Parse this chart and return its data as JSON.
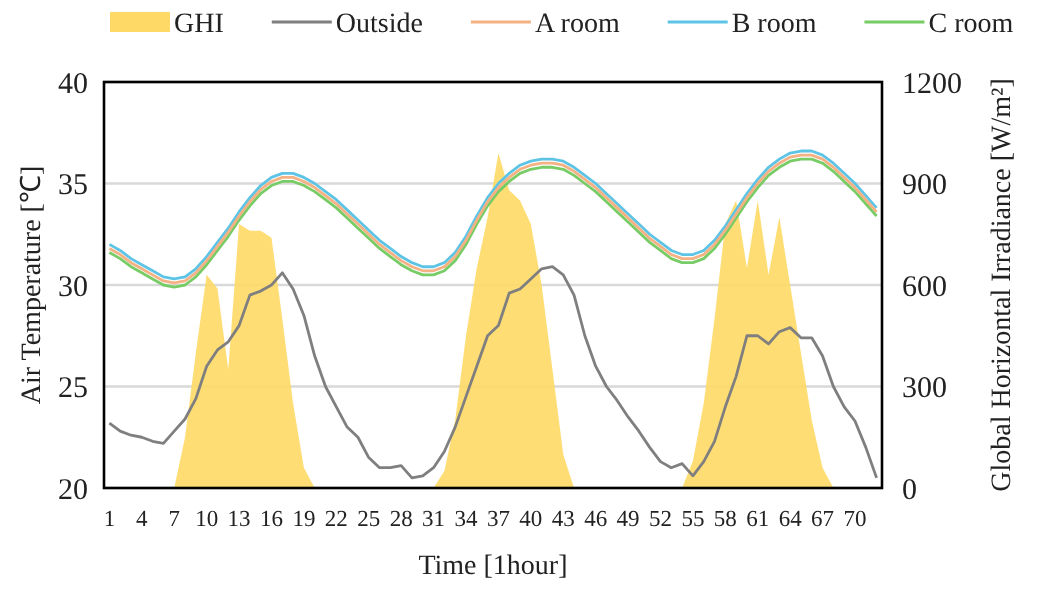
{
  "chart_data": {
    "type": "line",
    "xlabel": "Time [1hour]",
    "ylabel": "Air Temperature [℃]",
    "y2label": "Global Horizontal Irradiance [W/m²]",
    "categories": [
      "1",
      null,
      null,
      "4",
      null,
      null,
      "7",
      null,
      null,
      "10",
      null,
      null,
      "13",
      null,
      null,
      "16",
      null,
      null,
      "19",
      null,
      null,
      "22",
      null,
      null,
      "25",
      null,
      null,
      "28",
      null,
      null,
      "31",
      null,
      null,
      "34",
      null,
      null,
      "37",
      null,
      null,
      "40",
      null,
      null,
      "43",
      null,
      null,
      "46",
      null,
      null,
      "49",
      null,
      null,
      "52",
      null,
      null,
      "55",
      null,
      null,
      "58",
      null,
      null,
      "61",
      null,
      null,
      "64",
      null,
      null,
      "67",
      null,
      null,
      "70",
      null,
      null
    ],
    "series": [
      {
        "name": "GHI",
        "type": "area",
        "axis": "y2",
        "color": "#ffd966",
        "values": [
          0,
          0,
          0,
          0,
          0,
          0,
          0,
          150,
          400,
          630,
          590,
          350,
          780,
          760,
          760,
          740,
          500,
          250,
          60,
          0,
          0,
          0,
          0,
          0,
          0,
          0,
          0,
          0,
          0,
          0,
          0,
          50,
          200,
          450,
          650,
          800,
          990,
          880,
          850,
          780,
          600,
          350,
          100,
          0,
          0,
          0,
          0,
          0,
          0,
          0,
          0,
          0,
          0,
          0,
          80,
          250,
          500,
          780,
          850,
          650,
          850,
          630,
          800,
          600,
          400,
          200,
          60,
          0,
          0,
          0,
          0,
          0
        ]
      },
      {
        "name": "Outside",
        "color": "#7f7f7f",
        "values": [
          23.2,
          22.8,
          22.6,
          22.5,
          22.3,
          22.2,
          22.8,
          23.4,
          24.4,
          26,
          26.8,
          27.2,
          28,
          29.5,
          29.7,
          30,
          30.6,
          29.8,
          28.5,
          26.5,
          25,
          24,
          23,
          22.5,
          21.5,
          21,
          21,
          21.1,
          20.5,
          20.6,
          21,
          21.8,
          23,
          24.5,
          26,
          27.5,
          28,
          29.6,
          29.8,
          30.3,
          30.8,
          30.9,
          30.5,
          29.5,
          27.5,
          26,
          25,
          24.3,
          23.5,
          22.8,
          22,
          21.3,
          21,
          21.2,
          20.6,
          21.3,
          22.3,
          24,
          25.5,
          27.5,
          27.5,
          27.1,
          27.7,
          27.9,
          27.4,
          27.4,
          26.5,
          25,
          24,
          23.3,
          22,
          20.5
        ]
      },
      {
        "name": "A room",
        "color": "#f4b183",
        "values": [
          31.8,
          31.5,
          31.1,
          30.8,
          30.5,
          30.2,
          30.1,
          30.2,
          30.6,
          31.2,
          31.9,
          32.6,
          33.4,
          34.1,
          34.7,
          35.1,
          35.3,
          35.3,
          35.1,
          34.8,
          34.4,
          34,
          33.5,
          33,
          32.5,
          32,
          31.6,
          31.2,
          30.9,
          30.7,
          30.7,
          30.9,
          31.4,
          32.2,
          33.2,
          34.1,
          34.8,
          35.3,
          35.7,
          35.9,
          36,
          36,
          35.9,
          35.6,
          35.2,
          34.8,
          34.3,
          33.8,
          33.3,
          32.8,
          32.3,
          31.9,
          31.5,
          31.3,
          31.3,
          31.5,
          32,
          32.7,
          33.5,
          34.3,
          35,
          35.6,
          36,
          36.3,
          36.4,
          36.4,
          36.2,
          35.8,
          35.3,
          34.8,
          34.2,
          33.6
        ]
      },
      {
        "name": "B room",
        "color": "#5ec4e6",
        "values": [
          32,
          31.7,
          31.3,
          31,
          30.7,
          30.4,
          30.3,
          30.4,
          30.8,
          31.4,
          32.1,
          32.8,
          33.6,
          34.3,
          34.9,
          35.3,
          35.5,
          35.5,
          35.3,
          35,
          34.6,
          34.2,
          33.7,
          33.2,
          32.7,
          32.2,
          31.8,
          31.4,
          31.1,
          30.9,
          30.9,
          31.1,
          31.6,
          32.4,
          33.4,
          34.3,
          35,
          35.5,
          35.9,
          36.1,
          36.2,
          36.2,
          36.1,
          35.8,
          35.4,
          35,
          34.5,
          34,
          33.5,
          33,
          32.5,
          32.1,
          31.7,
          31.5,
          31.5,
          31.7,
          32.2,
          32.9,
          33.7,
          34.5,
          35.2,
          35.8,
          36.2,
          36.5,
          36.6,
          36.6,
          36.4,
          36,
          35.5,
          35,
          34.4,
          33.8
        ]
      },
      {
        "name": "C room",
        "color": "#77cc66",
        "values": [
          31.6,
          31.3,
          30.9,
          30.6,
          30.3,
          30,
          29.9,
          30,
          30.4,
          31,
          31.7,
          32.4,
          33.2,
          33.9,
          34.5,
          34.9,
          35.1,
          35.1,
          34.9,
          34.6,
          34.2,
          33.8,
          33.3,
          32.8,
          32.3,
          31.8,
          31.4,
          31,
          30.7,
          30.5,
          30.5,
          30.7,
          31.2,
          32,
          33,
          33.9,
          34.6,
          35.1,
          35.5,
          35.7,
          35.8,
          35.8,
          35.7,
          35.4,
          35,
          34.6,
          34.1,
          33.6,
          33.1,
          32.6,
          32.1,
          31.7,
          31.3,
          31.1,
          31.1,
          31.3,
          31.8,
          32.5,
          33.3,
          34.1,
          34.8,
          35.4,
          35.8,
          36.1,
          36.2,
          36.2,
          36,
          35.6,
          35.1,
          34.6,
          34,
          33.4
        ]
      }
    ],
    "ylim": [
      20,
      40
    ],
    "yticks": [
      20,
      25,
      30,
      35,
      40
    ],
    "y2lim": [
      0,
      1200
    ],
    "y2ticks": [
      0,
      300,
      600,
      900,
      1200
    ],
    "grid": "y",
    "legend": "top",
    "marker": "none",
    "line_style": "solid"
  }
}
